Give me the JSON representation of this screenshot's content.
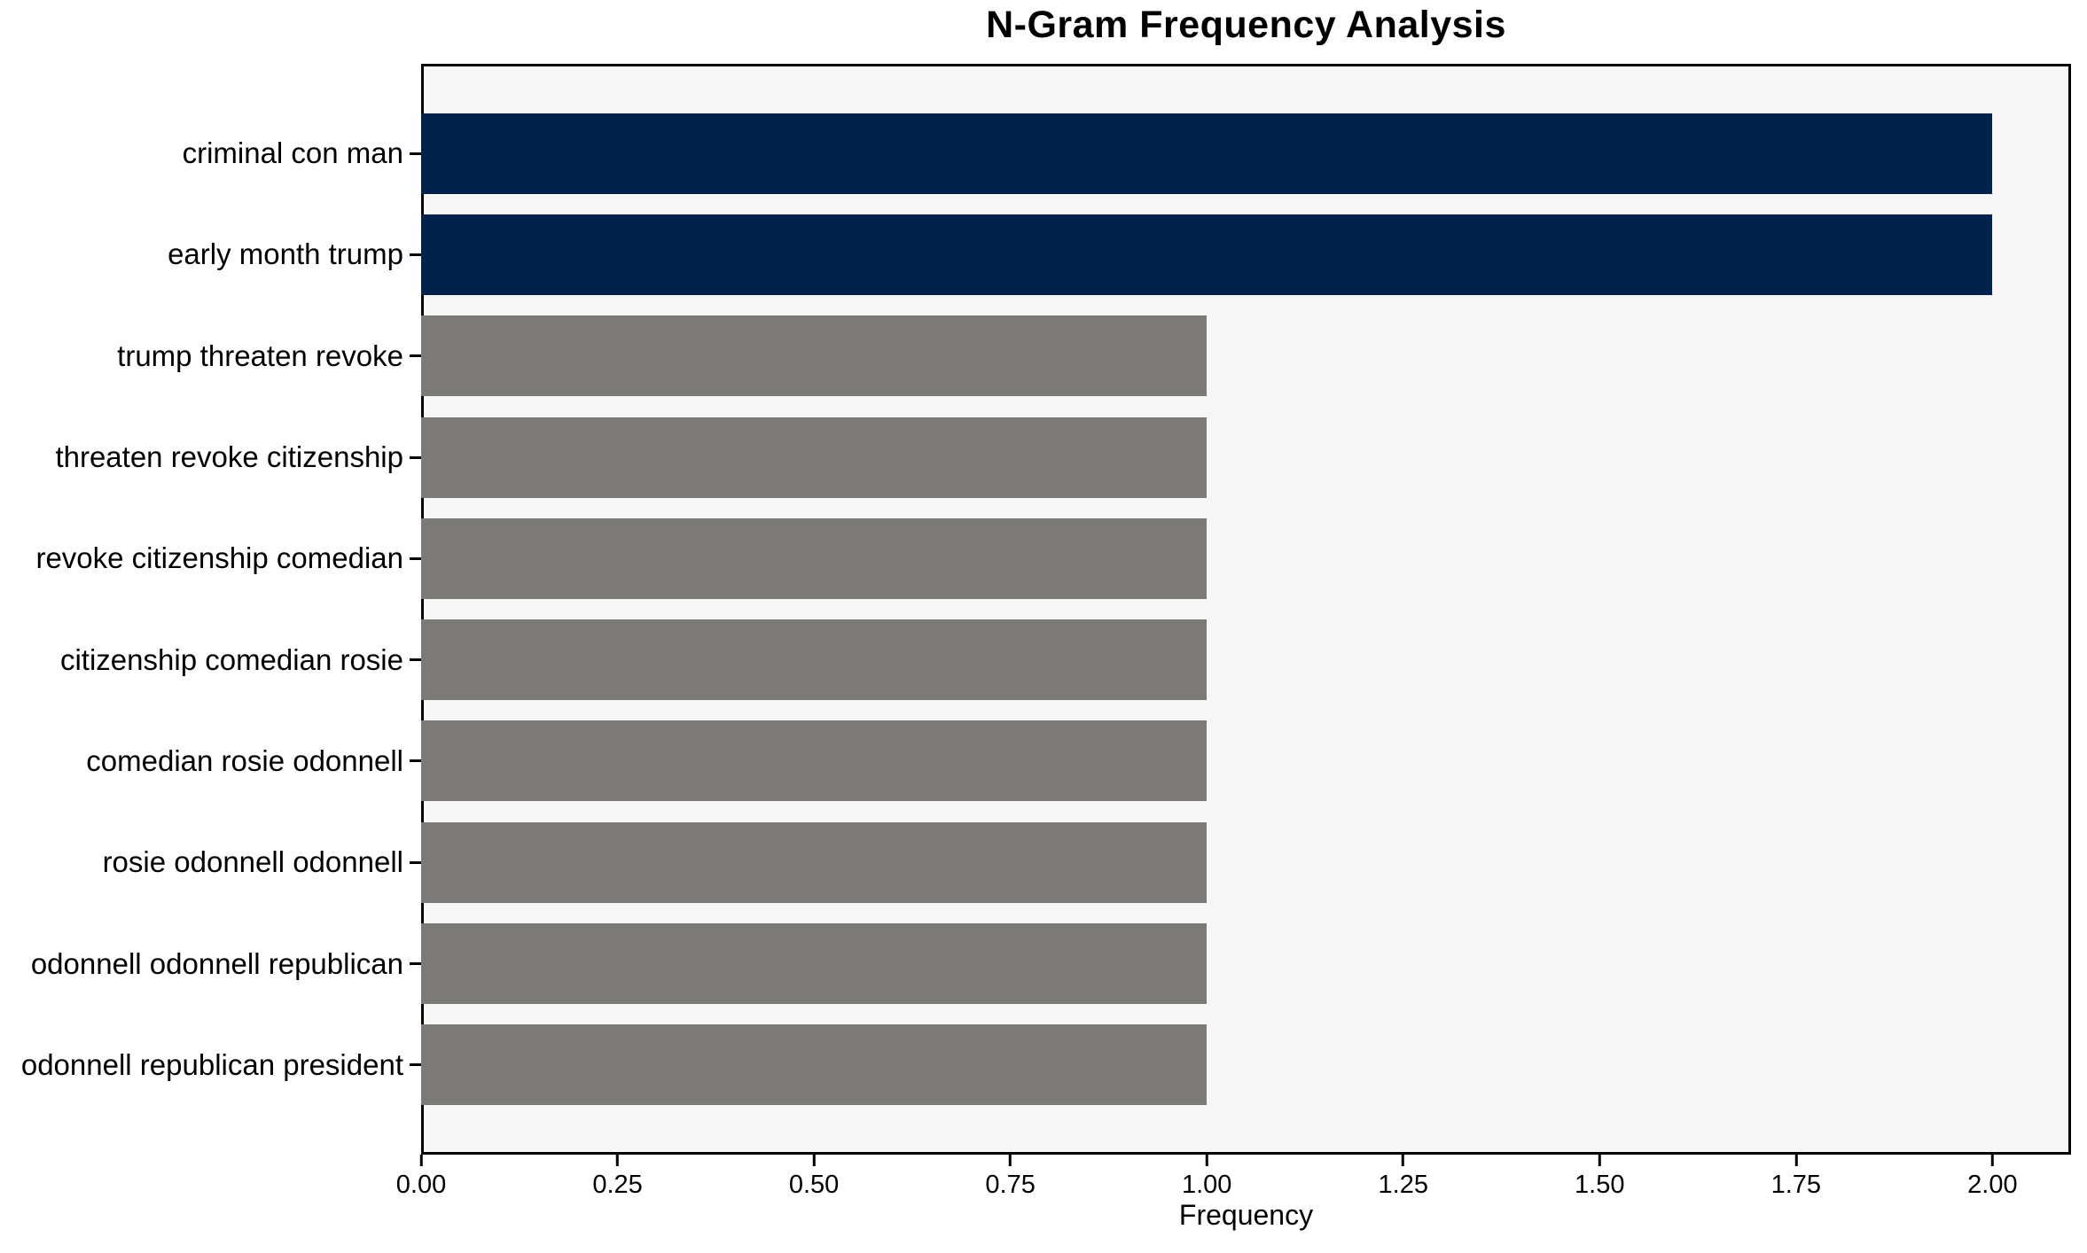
{
  "chart_data": {
    "type": "bar",
    "orientation": "horizontal",
    "title": "N-Gram Frequency Analysis",
    "xlabel": "Frequency",
    "ylabel": "",
    "categories": [
      "criminal con man",
      "early month trump",
      "trump threaten revoke",
      "threaten revoke citizenship",
      "revoke citizenship comedian",
      "citizenship comedian rosie",
      "comedian rosie odonnell",
      "rosie odonnell odonnell",
      "odonnell odonnell republican",
      "odonnell republican president"
    ],
    "values": [
      2,
      2,
      1,
      1,
      1,
      1,
      1,
      1,
      1,
      1
    ],
    "bar_colors": [
      "#00224d",
      "#00224d",
      "#7b7a77",
      "#7b7a77",
      "#7b7a77",
      "#7b7a77",
      "#7b7a77",
      "#7b7a77",
      "#7b7a77",
      "#7b7a77"
    ],
    "xlim": [
      0,
      2.1
    ],
    "xticks": [
      0,
      0.25,
      0.5,
      0.75,
      1.0,
      1.25,
      1.5,
      1.75,
      2.0
    ],
    "xtick_labels": [
      "0.00",
      "0.25",
      "0.50",
      "0.75",
      "1.00",
      "1.25",
      "1.50",
      "1.75",
      "2.00"
    ],
    "grid": false,
    "legend": null,
    "colors": {
      "high_freq_bar": "#00224d",
      "low_freq_bar": "#7b7a77",
      "plot_background": "#f7f6f6",
      "spine": "#000000",
      "text": "#000000"
    }
  }
}
